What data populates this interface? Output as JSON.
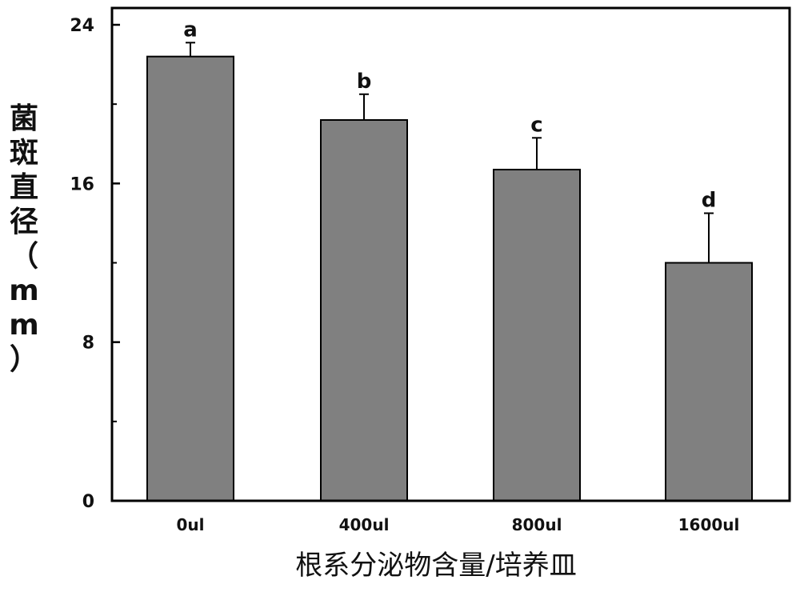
{
  "chart_data": {
    "type": "bar",
    "categories": [
      "0ul",
      "400ul",
      "800ul",
      "1600ul"
    ],
    "values": [
      22.4,
      19.2,
      16.7,
      12.0
    ],
    "error": [
      0.7,
      1.3,
      1.6,
      2.5
    ],
    "significance": [
      "a",
      "b",
      "c",
      "d"
    ],
    "ylabel": "菌斑直径（mm）",
    "xlabel": "根系分泌物含量/培养皿",
    "ylim": [
      0,
      24
    ],
    "yticks": [
      "0",
      "8",
      "16",
      "24"
    ],
    "grid": false,
    "bar_color": "#808080",
    "axis_color": "#000000"
  }
}
